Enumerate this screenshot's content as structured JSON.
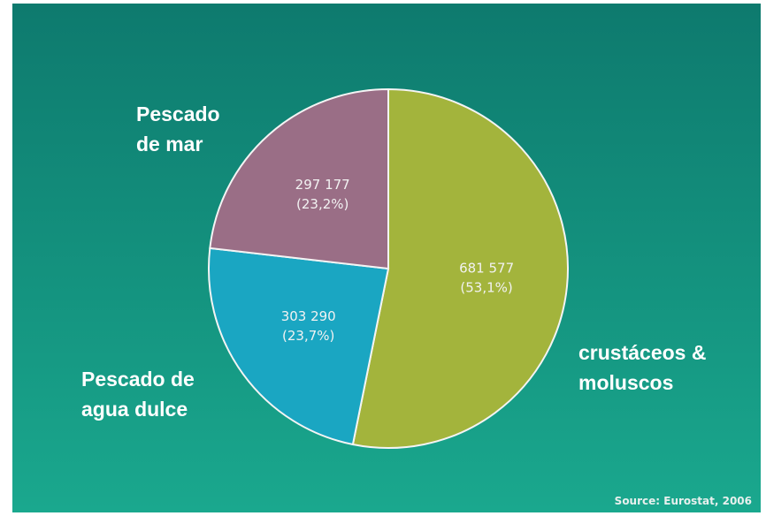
{
  "chart_data": {
    "type": "pie",
    "categories": [
      "crustáceos & moluscos",
      "Pescado de agua dulce",
      "Pescado de mar"
    ],
    "values": [
      681577,
      303290,
      297177
    ],
    "value_labels": [
      "681 577",
      "303 290",
      "297 177"
    ],
    "percentages": [
      53.1,
      23.7,
      23.2
    ],
    "percentage_labels": [
      "(53,1%)",
      "(23,7%)",
      "(23,2%)"
    ],
    "colors": [
      "#a3b43c",
      "#1aa6c2",
      "#9a6e86"
    ],
    "source": "Source: Eurostat, 2006"
  }
}
